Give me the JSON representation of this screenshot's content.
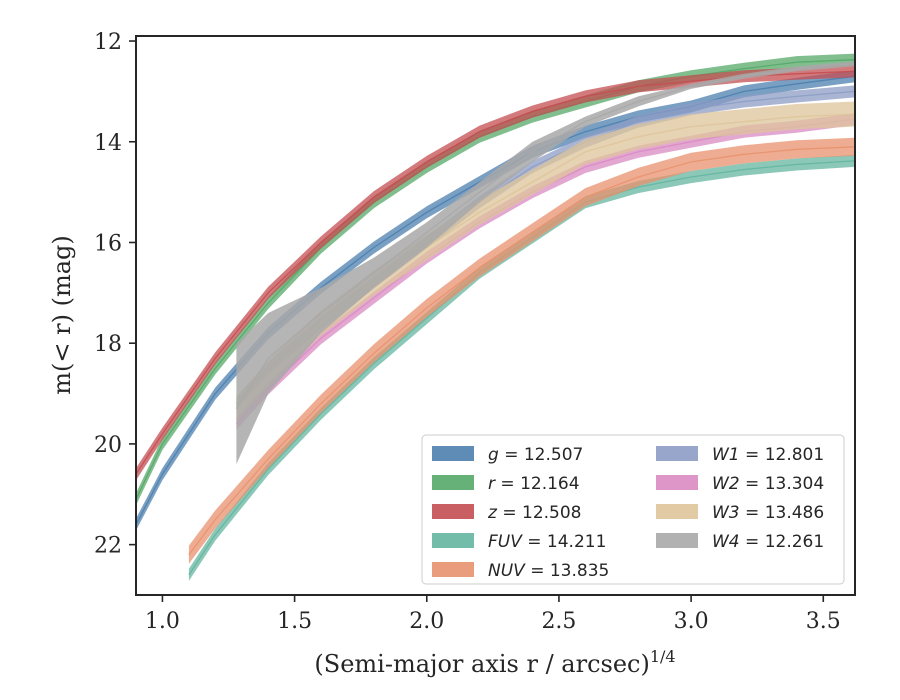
{
  "chart_data": {
    "type": "line",
    "xlabel": "(Semi-major axis r / arcsec)",
    "xlabel_sup": "1/4",
    "ylabel": "m(< r) (mag)",
    "xlim": [
      0.9,
      3.62
    ],
    "ylim": [
      23.0,
      11.9
    ],
    "y_inverted": true,
    "x_ticks": [
      1.0,
      1.5,
      2.0,
      2.5,
      3.0,
      3.5
    ],
    "x_tick_labels": [
      "1.0",
      "1.5",
      "2.0",
      "2.5",
      "3.0",
      "3.5"
    ],
    "y_ticks": [
      12,
      14,
      16,
      18,
      20,
      22
    ],
    "y_tick_labels": [
      "12",
      "14",
      "16",
      "18",
      "20",
      "22"
    ],
    "grid": false,
    "legend_position": "lower-right",
    "series": [
      {
        "name": "g = 12.507",
        "band": "g",
        "value": "12.507",
        "color": "#4c7faf",
        "x": [
          0.9,
          1.0,
          1.2,
          1.4,
          1.6,
          1.8,
          2.0,
          2.2,
          2.4,
          2.6,
          2.8,
          3.0,
          3.2,
          3.4,
          3.62
        ],
        "y": [
          21.6,
          20.6,
          19.0,
          17.8,
          16.9,
          16.1,
          15.4,
          14.8,
          14.2,
          13.8,
          13.5,
          13.3,
          13.0,
          12.85,
          12.7
        ],
        "band_width": 0.12
      },
      {
        "name": "r = 12.164",
        "band": "r",
        "value": "12.164",
        "color": "#55a868",
        "x": [
          0.9,
          1.0,
          1.2,
          1.4,
          1.6,
          1.8,
          2.0,
          2.2,
          2.4,
          2.6,
          2.8,
          3.0,
          3.2,
          3.4,
          3.62
        ],
        "y": [
          21.1,
          20.0,
          18.5,
          17.2,
          16.1,
          15.2,
          14.5,
          13.9,
          13.5,
          13.2,
          12.9,
          12.7,
          12.55,
          12.42,
          12.37
        ],
        "band_width": 0.12
      },
      {
        "name": "z = 12.508",
        "band": "z",
        "value": "12.508",
        "color": "#c44e52",
        "x": [
          0.9,
          1.0,
          1.2,
          1.4,
          1.6,
          1.8,
          2.0,
          2.2,
          2.4,
          2.6,
          2.8,
          3.0,
          3.2,
          3.4,
          3.62
        ],
        "y": [
          20.6,
          19.8,
          18.3,
          17.0,
          16.0,
          15.1,
          14.4,
          13.8,
          13.4,
          13.1,
          12.9,
          12.8,
          12.7,
          12.65,
          12.6
        ],
        "band_width": 0.12
      },
      {
        "name": "FUV = 14.211",
        "band": "FUV",
        "value": "14.211",
        "color": "#64b5a0",
        "x": [
          1.1,
          1.2,
          1.4,
          1.6,
          1.8,
          2.0,
          2.2,
          2.4,
          2.6,
          2.8,
          3.0,
          3.2,
          3.4,
          3.62
        ],
        "y": [
          22.6,
          21.8,
          20.5,
          19.4,
          18.4,
          17.5,
          16.6,
          15.9,
          15.2,
          14.9,
          14.7,
          14.55,
          14.45,
          14.38
        ],
        "band_width": 0.12
      },
      {
        "name": "NUV = 13.835",
        "band": "NUV",
        "value": "13.835",
        "color": "#e8926e",
        "x": [
          1.1,
          1.2,
          1.4,
          1.6,
          1.8,
          2.0,
          2.2,
          2.4,
          2.6,
          2.8,
          3.0,
          3.2,
          3.4,
          3.62
        ],
        "y": [
          22.2,
          21.5,
          20.3,
          19.2,
          18.2,
          17.3,
          16.5,
          15.8,
          15.1,
          14.7,
          14.4,
          14.25,
          14.15,
          14.1
        ],
        "band_width": 0.18
      },
      {
        "name": "W1 = 12.801",
        "band": "W1",
        "value": "12.801",
        "color": "#8c9cc4",
        "x": [
          1.28,
          1.4,
          1.6,
          1.8,
          2.0,
          2.2,
          2.4,
          2.6,
          2.8,
          3.0,
          3.2,
          3.4,
          3.62
        ],
        "y": [
          19.2,
          18.5,
          17.6,
          16.8,
          16.0,
          15.2,
          14.5,
          14.0,
          13.6,
          13.35,
          13.2,
          13.1,
          13.0
        ],
        "band_width": 0.12
      },
      {
        "name": "W2 = 13.304",
        "band": "W2",
        "value": "13.304",
        "color": "#da8bc3",
        "x": [
          1.28,
          1.4,
          1.6,
          1.8,
          2.0,
          2.2,
          2.4,
          2.6,
          2.8,
          3.0,
          3.2,
          3.4,
          3.62
        ],
        "y": [
          19.6,
          18.9,
          17.9,
          17.1,
          16.3,
          15.6,
          15.0,
          14.5,
          14.2,
          14.0,
          13.8,
          13.7,
          13.55
        ],
        "band_width": 0.12
      },
      {
        "name": "W3 = 13.486",
        "band": "W3",
        "value": "13.486",
        "color": "#dec49a",
        "x": [
          1.28,
          1.4,
          1.6,
          1.8,
          2.0,
          2.2,
          2.4,
          2.6,
          2.8,
          3.0,
          3.2,
          3.4,
          3.62
        ],
        "y": [
          19.3,
          18.6,
          17.6,
          16.8,
          16.1,
          15.4,
          14.8,
          14.2,
          13.9,
          13.7,
          13.6,
          13.5,
          13.45
        ],
        "band_width": 0.25
      },
      {
        "name": "W4 = 12.261",
        "band": "W4",
        "value": "12.261",
        "color": "#a8a8a8",
        "x": [
          1.28,
          1.4,
          1.6,
          1.8,
          2.0,
          2.2,
          2.4,
          2.6,
          2.8,
          3.0,
          3.2,
          3.4,
          3.62
        ],
        "y": [
          19.3,
          18.3,
          17.4,
          16.6,
          15.8,
          15.0,
          14.2,
          13.6,
          13.2,
          12.9,
          12.7,
          12.55,
          12.45
        ],
        "band_lo": [
          20.4,
          19.0,
          17.8,
          16.9,
          16.1,
          15.2,
          14.4,
          13.7,
          13.3,
          12.95,
          12.75,
          12.6,
          12.5
        ],
        "band_hi": [
          18.0,
          17.4,
          16.9,
          16.3,
          15.6,
          14.8,
          14.0,
          13.5,
          13.1,
          12.85,
          12.65,
          12.5,
          12.4
        ]
      }
    ]
  },
  "legend_entries": [
    {
      "label": "g",
      "value": "12.507"
    },
    {
      "label": "r",
      "value": "12.164"
    },
    {
      "label": "z",
      "value": "12.508"
    },
    {
      "label": "FUV",
      "value": "14.211"
    },
    {
      "label": "NUV",
      "value": "13.835"
    },
    {
      "label": "W1",
      "value": "12.801"
    },
    {
      "label": "W2",
      "value": "13.304"
    },
    {
      "label": "W3",
      "value": "13.486"
    },
    {
      "label": "W4",
      "value": "12.261"
    }
  ]
}
